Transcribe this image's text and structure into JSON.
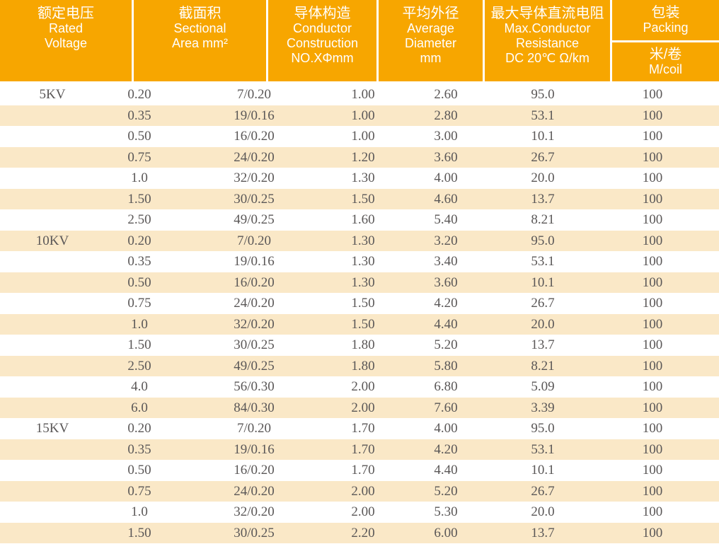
{
  "colors": {
    "page_bg": "#FFFFFF",
    "header_bg": "#F7A600",
    "header_text": "#FFFFFF",
    "row_stripe": "#FAE8C7",
    "row_text": "#5A5757"
  },
  "header": {
    "rated_voltage": {
      "zh": "额定电压",
      "en1": "Rated",
      "en2": "Voltage"
    },
    "sectional_area": {
      "zh": "截面积",
      "en1": "Sectional",
      "en2": "Area mm²"
    },
    "conductor_construction": {
      "zh": "导体构造",
      "en1": "Conductor",
      "en2": "Construction",
      "en3": "NO.XΦmm"
    },
    "average_diameter": {
      "zh": "平均外径",
      "en1": "Average",
      "en2": "Diameter",
      "en3": "mm"
    },
    "max_resistance": {
      "zh": "最大导体直流电阻",
      "en1": "Max.Conductor",
      "en2": "Resistance",
      "en3": "DC 20℃ Ω/km"
    },
    "packing": {
      "zh": "包装",
      "en": "Packing",
      "sub_zh": "米/卷",
      "sub_en": "M/coil"
    }
  },
  "table": {
    "rows": [
      [
        "5KV",
        "0.20",
        "7/0.20",
        "1.00",
        "2.60",
        "95.0",
        "100"
      ],
      [
        "",
        "0.35",
        "19/0.16",
        "1.00",
        "2.80",
        "53.1",
        "100"
      ],
      [
        "",
        "0.50",
        "16/0.20",
        "1.00",
        "3.00",
        "10.1",
        "100"
      ],
      [
        "",
        "0.75",
        "24/0.20",
        "1.20",
        "3.60",
        "26.7",
        "100"
      ],
      [
        "",
        "1.0",
        "32/0.20",
        "1.30",
        "4.00",
        "20.0",
        "100"
      ],
      [
        "",
        "1.50",
        "30/0.25",
        "1.50",
        "4.60",
        "13.7",
        "100"
      ],
      [
        "",
        "2.50",
        "49/0.25",
        "1.60",
        "5.40",
        "8.21",
        "100"
      ],
      [
        "10KV",
        "0.20",
        "7/0.20",
        "1.30",
        "3.20",
        "95.0",
        "100"
      ],
      [
        "",
        "0.35",
        "19/0.16",
        "1.30",
        "3.40",
        "53.1",
        "100"
      ],
      [
        "",
        "0.50",
        "16/0.20",
        "1.30",
        "3.60",
        "10.1",
        "100"
      ],
      [
        "",
        "0.75",
        "24/0.20",
        "1.50",
        "4.20",
        "26.7",
        "100"
      ],
      [
        "",
        "1.0",
        "32/0.20",
        "1.50",
        "4.40",
        "20.0",
        "100"
      ],
      [
        "",
        "1.50",
        "30/0.25",
        "1.80",
        "5.20",
        "13.7",
        "100"
      ],
      [
        "",
        "2.50",
        "49/0.25",
        "1.80",
        "5.80",
        "8.21",
        "100"
      ],
      [
        "",
        "4.0",
        "56/0.30",
        "2.00",
        "6.80",
        "5.09",
        "100"
      ],
      [
        "",
        "6.0",
        "84/0.30",
        "2.00",
        "7.60",
        "3.39",
        "100"
      ],
      [
        "15KV",
        "0.20",
        "7/0.20",
        "1.70",
        "4.00",
        "95.0",
        "100"
      ],
      [
        "",
        "0.35",
        "19/0.16",
        "1.70",
        "4.20",
        "53.1",
        "100"
      ],
      [
        "",
        "0.50",
        "16/0.20",
        "1.70",
        "4.40",
        "10.1",
        "100"
      ],
      [
        "",
        "0.75",
        "24/0.20",
        "2.00",
        "5.20",
        "26.7",
        "100"
      ],
      [
        "",
        "1.0",
        "32/0.20",
        "2.00",
        "5.30",
        "20.0",
        "100"
      ],
      [
        "",
        "1.50",
        "30/0.25",
        "2.20",
        "6.00",
        "13.7",
        "100"
      ]
    ]
  }
}
